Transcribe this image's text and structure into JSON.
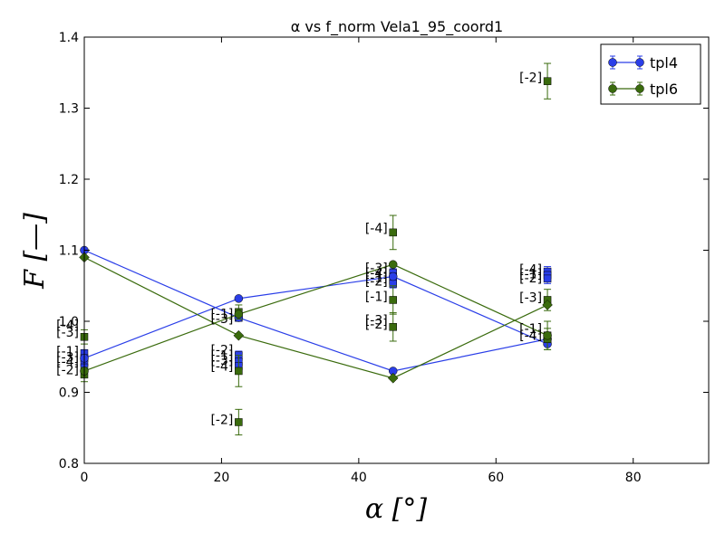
{
  "chart_data": {
    "type": "scatter",
    "title": "α vs f_norm Vela1_95_coord1",
    "xlabel": "α [°]",
    "ylabel": "F [—]",
    "xlim": [
      0,
      91
    ],
    "ylim": [
      0.8,
      1.4
    ],
    "xticks": [
      "0",
      "20",
      "40",
      "60",
      "80"
    ],
    "yticks": [
      "0.8",
      "0.9",
      "1.0",
      "1.1",
      "1.2",
      "1.3",
      "1.4"
    ],
    "grid": false,
    "legend_position": "top-right",
    "series": [
      {
        "name": "tpl4",
        "color": "#2a3ee8",
        "lines": [
          [
            [
              0,
              1.1
            ],
            [
              22.5,
              1.005
            ],
            [
              45,
              0.93
            ],
            [
              67.5,
              0.975
            ]
          ],
          [
            [
              0,
              0.948
            ],
            [
              22.5,
              1.032
            ],
            [
              45,
              1.063
            ],
            [
              67.5,
              0.968
            ]
          ]
        ],
        "circles": [
          {
            "x": 0,
            "y": 1.1
          },
          {
            "x": 22.5,
            "y": 1.005
          },
          {
            "x": 45,
            "y": 0.93
          },
          {
            "x": 67.5,
            "y": 0.975
          },
          {
            "x": 0,
            "y": 0.948
          },
          {
            "x": 22.5,
            "y": 1.032
          },
          {
            "x": 45,
            "y": 1.063
          },
          {
            "x": 67.5,
            "y": 0.968
          }
        ],
        "squares": [
          {
            "x": 0,
            "y": 0.955,
            "err": 0.005
          },
          {
            "x": 0,
            "y": 0.948,
            "err": 0.005
          },
          {
            "x": 0,
            "y": 0.942,
            "err": 0.005
          },
          {
            "x": 0,
            "y": 0.935,
            "err": 0.005
          },
          {
            "x": 22.5,
            "y": 0.952,
            "err": 0.006
          },
          {
            "x": 22.5,
            "y": 0.943,
            "err": 0.006
          },
          {
            "x": 22.5,
            "y": 0.937,
            "err": 0.006
          },
          {
            "x": 22.5,
            "y": 1.005,
            "err": 0.005
          },
          {
            "x": 45,
            "y": 1.068,
            "err": 0.006
          },
          {
            "x": 45,
            "y": 1.063,
            "err": 0.006
          },
          {
            "x": 45,
            "y": 1.058,
            "err": 0.006
          },
          {
            "x": 45,
            "y": 1.053,
            "err": 0.006
          },
          {
            "x": 67.5,
            "y": 1.07,
            "err": 0.007
          },
          {
            "x": 67.5,
            "y": 1.065,
            "err": 0.007
          },
          {
            "x": 67.5,
            "y": 1.06,
            "err": 0.007
          },
          {
            "x": 67.5,
            "y": 0.975,
            "err": 0.006
          }
        ]
      },
      {
        "name": "tpl6",
        "color": "#3a6b0d",
        "lines": [
          [
            [
              0,
              1.09
            ],
            [
              22.5,
              0.98
            ],
            [
              45,
              0.92
            ],
            [
              67.5,
              1.023
            ]
          ],
          [
            [
              0,
              0.93
            ],
            [
              22.5,
              1.01
            ],
            [
              45,
              1.08
            ],
            [
              67.5,
              0.98
            ]
          ]
        ],
        "diamonds": [
          {
            "x": 0,
            "y": 1.09
          },
          {
            "x": 22.5,
            "y": 0.98
          },
          {
            "x": 45,
            "y": 0.92
          },
          {
            "x": 67.5,
            "y": 1.023
          }
        ],
        "circles": [
          {
            "x": 0,
            "y": 0.93
          },
          {
            "x": 22.5,
            "y": 1.01
          },
          {
            "x": 45,
            "y": 1.08
          },
          {
            "x": 67.5,
            "y": 0.98
          }
        ],
        "squares": [
          {
            "x": 0,
            "y": 0.978,
            "err": 0.01
          },
          {
            "x": 0,
            "y": 0.925,
            "err": 0.01
          },
          {
            "x": 22.5,
            "y": 1.013,
            "err": 0.01
          },
          {
            "x": 22.5,
            "y": 0.93,
            "err": 0.022
          },
          {
            "x": 22.5,
            "y": 0.858,
            "err": 0.018
          },
          {
            "x": 45,
            "y": 1.125,
            "err": 0.024
          },
          {
            "x": 45,
            "y": 1.03,
            "err": 0.02
          },
          {
            "x": 45,
            "y": 0.992,
            "err": 0.02
          },
          {
            "x": 67.5,
            "y": 1.338,
            "err": 0.025
          },
          {
            "x": 67.5,
            "y": 1.03,
            "err": 0.015
          },
          {
            "x": 67.5,
            "y": 0.98,
            "err": 0.02
          },
          {
            "x": 67.5,
            "y": 0.975,
            "err": 0.015
          }
        ]
      }
    ],
    "annotations": [
      {
        "text": "[-4]",
        "x": 0,
        "y": 0.995
      },
      {
        "text": "[-3]",
        "x": 0,
        "y": 0.985
      },
      {
        "text": "[-1]",
        "x": 0,
        "y": 0.958
      },
      {
        "text": "[-3]",
        "x": 0,
        "y": 0.95
      },
      {
        "text": "[-4]",
        "x": 0,
        "y": 0.943
      },
      {
        "text": "[-2]",
        "x": 0,
        "y": 0.932
      },
      {
        "text": "[-1]",
        "x": 22.5,
        "y": 1.011
      },
      {
        "text": "[-3]",
        "x": 22.5,
        "y": 1.004
      },
      {
        "text": "[-2]",
        "x": 22.5,
        "y": 0.96
      },
      {
        "text": "[-1]",
        "x": 22.5,
        "y": 0.952
      },
      {
        "text": "[-3]",
        "x": 22.5,
        "y": 0.945
      },
      {
        "text": "[-4]",
        "x": 22.5,
        "y": 0.937
      },
      {
        "text": "[-2]",
        "x": 22.5,
        "y": 0.862
      },
      {
        "text": "[-4]",
        "x": 45,
        "y": 1.131
      },
      {
        "text": "[-3]",
        "x": 45,
        "y": 1.075
      },
      {
        "text": "[-4]",
        "x": 45,
        "y": 1.068
      },
      {
        "text": "[-1]",
        "x": 45,
        "y": 1.062
      },
      {
        "text": "[-2]",
        "x": 45,
        "y": 1.057
      },
      {
        "text": "[-1]",
        "x": 45,
        "y": 1.035
      },
      {
        "text": "[-3]",
        "x": 45,
        "y": 1.002
      },
      {
        "text": "[-2]",
        "x": 45,
        "y": 0.996
      },
      {
        "text": "[-2]",
        "x": 67.5,
        "y": 1.343
      },
      {
        "text": "[-4]",
        "x": 67.5,
        "y": 1.073
      },
      {
        "text": "[-1]",
        "x": 67.5,
        "y": 1.067
      },
      {
        "text": "[-2]",
        "x": 67.5,
        "y": 1.061
      },
      {
        "text": "[-3]",
        "x": 67.5,
        "y": 1.034
      },
      {
        "text": "[-1]",
        "x": 67.5,
        "y": 0.99
      },
      {
        "text": "[-4]",
        "x": 67.5,
        "y": 0.98
      }
    ]
  }
}
